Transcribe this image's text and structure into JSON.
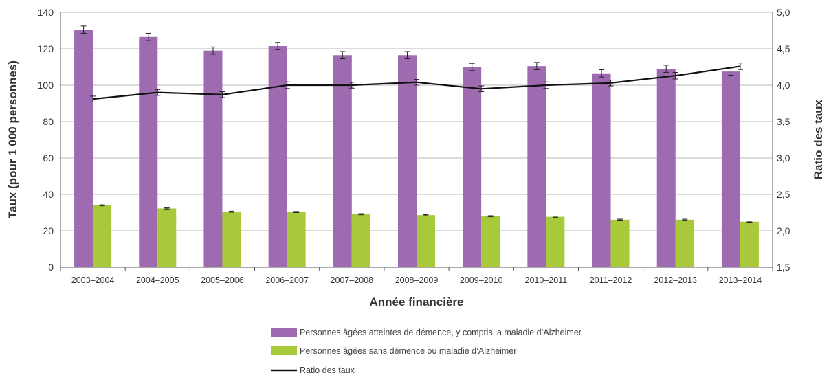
{
  "chart_data": {
    "type": "bar",
    "categories": [
      "2003–2004",
      "2004–2005",
      "2005–2006",
      "2006–2007",
      "2007–2008",
      "2008–2009",
      "2009–2010",
      "2010–2011",
      "2011–2012",
      "2012–2013",
      "2013–2014"
    ],
    "series": [
      {
        "name": "Personnes âgées atteintes de démence, y compris la maladie d’Alzheimer",
        "kind": "bar",
        "axis": "left",
        "color": "#9e6bb0",
        "values": [
          130.5,
          126.5,
          119,
          121.5,
          116.5,
          116.5,
          110,
          110.5,
          106.5,
          109,
          107.5
        ],
        "error": [
          2,
          2,
          2,
          2,
          2,
          2,
          2,
          2,
          2,
          2,
          2
        ]
      },
      {
        "name": "Personnes âgées sans démence ou maladie d’Alzheimer",
        "kind": "bar",
        "axis": "left",
        "color": "#a8c93a",
        "values": [
          34,
          32.3,
          30.5,
          30.3,
          29.1,
          28.6,
          28,
          27.7,
          26.1,
          26.1,
          25
        ],
        "error": [
          0.3,
          0.3,
          0.3,
          0.3,
          0.3,
          0.3,
          0.3,
          0.3,
          0.3,
          0.3,
          0.3
        ]
      },
      {
        "name": "Ratio des taux",
        "kind": "line",
        "axis": "right",
        "color": "#111111",
        "values": [
          3.81,
          3.9,
          3.87,
          4.0,
          4.0,
          4.04,
          3.95,
          4.0,
          4.03,
          4.13,
          4.26
        ],
        "error": [
          0.04,
          0.04,
          0.04,
          0.045,
          0.04,
          0.04,
          0.04,
          0.045,
          0.04,
          0.045,
          0.045
        ]
      }
    ],
    "xlabel": "Année financière",
    "ylabel": "Taux (pour 1 000 personnes)",
    "y2label": "Ratio des taux",
    "ylim": [
      0,
      140
    ],
    "y2lim": [
      1.5,
      5.0
    ],
    "yticks": [
      "0",
      "20",
      "40",
      "60",
      "80",
      "100",
      "120",
      "140"
    ],
    "y2ticks": [
      "1,5",
      "2,0",
      "2,5",
      "3,0",
      "3,5",
      "4,0",
      "4,5",
      "5,0"
    ],
    "grid": true,
    "legend_position": "bottom"
  }
}
